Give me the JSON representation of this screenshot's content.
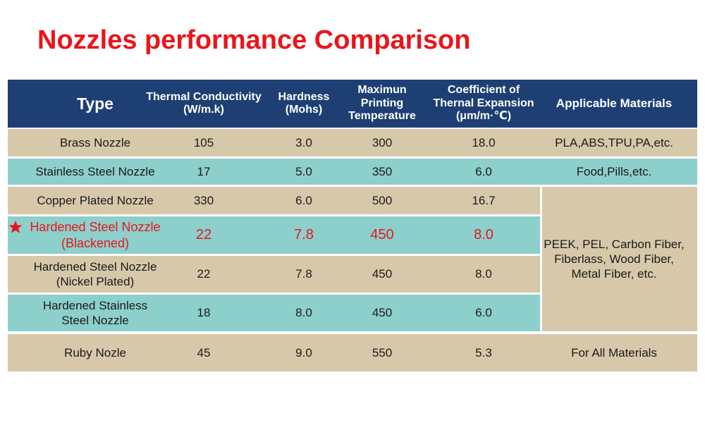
{
  "title": "Nozzles performance Comparison",
  "table": {
    "headers": [
      "Type",
      "Thermal Conductivity\n(W/m.k)",
      "Hardness\n(Mohs)",
      "Maximun\nPrinting\nTemperature",
      "Coefficient of\nThernal Expansion\n(μm/m·℃)",
      "Applicable Materials"
    ],
    "rows": [
      [
        "Brass Nozzle",
        "105",
        "3.0",
        "300",
        "18.0"
      ],
      [
        "Stainless Steel Nozzle",
        "17",
        "5.0",
        "350",
        "6.0"
      ],
      [
        "Copper Plated Nozzle",
        "330",
        "6.0",
        "500",
        "16.7"
      ],
      [
        "Hardened Steel Nozzle\n(Blackened)",
        "22",
        "7.8",
        "450",
        "8.0"
      ],
      [
        "Hardened Steel Nozzle\n(Nickel Plated)",
        "22",
        "7.8",
        "450",
        "8.0"
      ],
      [
        "Hardened Stainless\nSteel Nozzle",
        "18",
        "8.0",
        "450",
        "6.0"
      ],
      [
        "Ruby Nozle",
        "45",
        "9.0",
        "550",
        "5.3"
      ]
    ],
    "materials": [
      "PLA,ABS,TPU,PA,etc.",
      "Food,Pills,etc.",
      "PEEK, PEL, Carbon Fiber,\nFiberlass, Wood Fiber,\nMetal Fiber, etc.",
      "For All Materials"
    ]
  }
}
